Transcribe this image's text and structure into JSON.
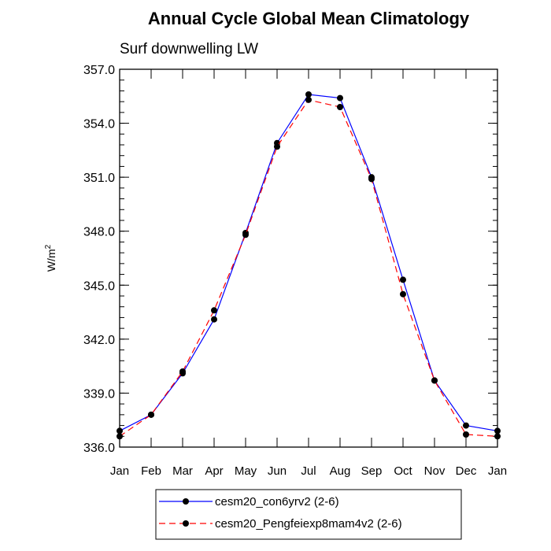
{
  "chart_data": {
    "type": "line",
    "title": "Annual Cycle Global Mean Climatology",
    "subtitle": "Surf downwelling LW",
    "ylabel": "W/m",
    "ylabel_superscript": "2",
    "xlabel": "",
    "categories": [
      "Jan",
      "Feb",
      "Mar",
      "Apr",
      "May",
      "Jun",
      "Jul",
      "Aug",
      "Sep",
      "Oct",
      "Nov",
      "Dec",
      "Jan"
    ],
    "ylim": [
      336.0,
      357.0
    ],
    "yticks": [
      336.0,
      339.0,
      342.0,
      345.0,
      348.0,
      351.0,
      354.0,
      357.0
    ],
    "ytick_labels": [
      "336.0",
      "339.0",
      "342.0",
      "345.0",
      "348.0",
      "351.0",
      "354.0",
      "357.0"
    ],
    "grid": false,
    "legend_position": "bottom-center",
    "series": [
      {
        "name": "cesm20_con6yrv2 (2-6)",
        "color": "#0000ff",
        "dashed": false,
        "values": [
          336.9,
          337.8,
          340.1,
          343.1,
          347.9,
          352.9,
          355.6,
          355.4,
          351.0,
          345.3,
          339.7,
          337.2,
          336.9
        ]
      },
      {
        "name": "cesm20_Pengfeiexp8mam4v2 (2-6)",
        "color": "#ff0000",
        "dashed": true,
        "values": [
          336.6,
          337.8,
          340.2,
          343.6,
          347.8,
          352.7,
          355.3,
          354.9,
          350.9,
          344.5,
          339.7,
          336.7,
          336.6
        ]
      }
    ]
  }
}
